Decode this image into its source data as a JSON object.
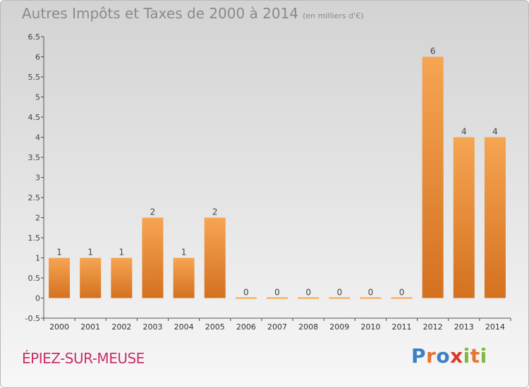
{
  "title": "Autres Impôts et Taxes de 2000 à 2014",
  "unit": "(en milliers d'€)",
  "commune": "ÉPIEZ-SUR-MEUSE",
  "logo": {
    "letters": [
      "P",
      "r",
      "o",
      "x",
      "i",
      "t",
      "i"
    ],
    "colors": [
      "#3d7fc6",
      "#e7742c",
      "#3d7fc6",
      "#d93a2b",
      "#7fb845",
      "#e7742c",
      "#7fb845"
    ]
  },
  "colors": {
    "bar_light": "#f6a553",
    "bar_dark": "#d4711f",
    "axis": "#555555",
    "grid_tick": "#444444",
    "commune": "#c7306d",
    "title": "#8a8a8a"
  },
  "chart_data": {
    "type": "bar",
    "categories": [
      "2000",
      "2001",
      "2002",
      "2003",
      "2004",
      "2005",
      "2006",
      "2007",
      "2008",
      "2009",
      "2010",
      "2011",
      "2012",
      "2013",
      "2014"
    ],
    "values": [
      1,
      1,
      1,
      2,
      1,
      2,
      0,
      0,
      0,
      0,
      0,
      0,
      6,
      4,
      4
    ],
    "data_labels": [
      "1",
      "1",
      "1",
      "2",
      "1",
      "2",
      "0",
      "0",
      "0",
      "0",
      "0",
      "0",
      "6",
      "4",
      "4"
    ],
    "yticks": [
      "-0.5",
      "0",
      "0.5",
      "1",
      "1.5",
      "2",
      "2.5",
      "3",
      "3.5",
      "4",
      "4.5",
      "5",
      "5.5",
      "6",
      "6.5"
    ],
    "ylim": [
      -0.5,
      6.5
    ],
    "title": "Autres Impôts et Taxes de 2000 à 2014",
    "xlabel": "",
    "ylabel": "",
    "grid": false
  }
}
